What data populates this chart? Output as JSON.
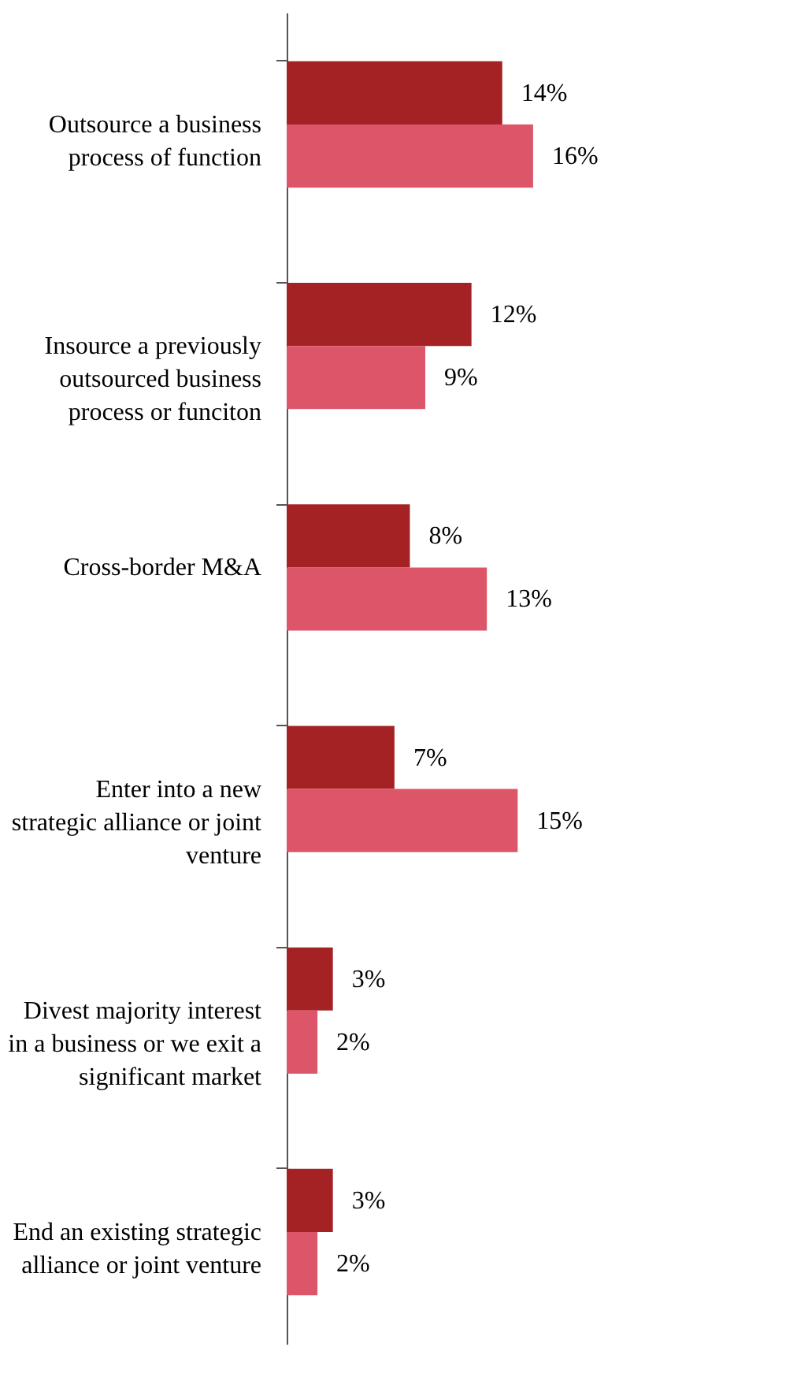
{
  "chart_data": {
    "type": "bar",
    "orientation": "horizontal",
    "categories": [
      "Outsource a business\nprocess of function",
      "Insource a previously\noutsourced business\nprocess or funciton",
      "Cross-border M&A",
      "Enter into a new\nstrategic alliance or joint\nventure",
      "Divest majority interest\nin a business or we exit a\nsignificant market",
      "End an existing strategic\nalliance or joint venture"
    ],
    "series": [
      {
        "color": "#a52224",
        "values": [
          14,
          12,
          8,
          7,
          3,
          3
        ],
        "value_labels": [
          "14%",
          "12%",
          "8%",
          "7%",
          "3%",
          "3%"
        ]
      },
      {
        "color": "#dc5569",
        "values": [
          16,
          9,
          13,
          15,
          2,
          2
        ],
        "value_labels": [
          "16%",
          "9%",
          "13%",
          "15%",
          "2%",
          "2%"
        ]
      }
    ]
  }
}
